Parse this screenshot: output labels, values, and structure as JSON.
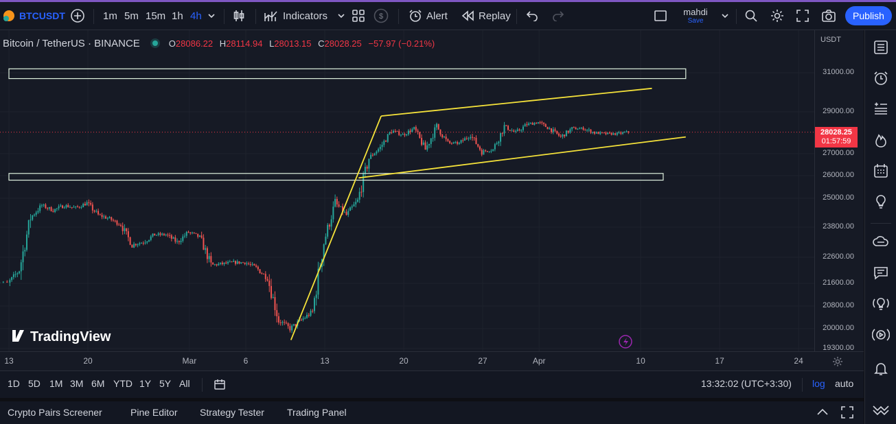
{
  "topbar": {
    "symbol": "BTCUSDT",
    "intervals": [
      "1m",
      "5m",
      "15m",
      "1h",
      "4h"
    ],
    "active_interval": "4h",
    "indicators_label": "Indicators",
    "alert_label": "Alert",
    "replay_label": "Replay",
    "user_name": "mahdi",
    "save_label": "Save",
    "publish_label": "Publish"
  },
  "legend": {
    "title": "Bitcoin / TetherUS · BINANCE",
    "open_key": "O",
    "open": "28086.22",
    "high_key": "H",
    "high": "28114.94",
    "low_key": "L",
    "low": "28013.15",
    "close_key": "C",
    "close": "28028.25",
    "change": "−57.97 (−0.21%)"
  },
  "watermark": "TradingView",
  "price_scale": {
    "currency": "USDT",
    "labels": [
      "31000.00",
      "29000.00",
      "27000.00",
      "26000.00",
      "25000.00",
      "23800.00",
      "22600.00",
      "21600.00",
      "20800.00",
      "20000.00",
      "19300.00"
    ],
    "last_price": "28028.25",
    "countdown": "01:57:59"
  },
  "time_axis": {
    "labels": [
      "13",
      "20",
      "Mar",
      "6",
      "13",
      "20",
      "27",
      "Apr",
      "10",
      "17",
      "24"
    ]
  },
  "bottom_bar": {
    "ranges": [
      "1D",
      "5D",
      "1M",
      "3M",
      "6M",
      "YTD",
      "1Y",
      "5Y",
      "All"
    ],
    "clock": "13:32:02 (UTC+3:30)",
    "log_label": "log",
    "auto_label": "auto"
  },
  "bottom_panel": {
    "tabs": [
      "Crypto Pairs Screener",
      "Pine Editor",
      "Strategy Tester",
      "Trading Panel"
    ]
  },
  "colors": {
    "up": "#26a69a",
    "down": "#ef5350",
    "trendline": "#f5e23a",
    "zone_border": "#e0f2e0",
    "last_price_bg": "#f23645",
    "accent": "#2962ff"
  },
  "drawings": {
    "upper_zone": {
      "from": "2023-02-13",
      "to": "2023-04-14",
      "bottom": 30700,
      "top": 31200
    },
    "lower_zone": {
      "from": "2023-02-13",
      "to": "2023-04-12",
      "bottom": 25800,
      "top": 26100
    },
    "channel_upper": {
      "from": "2023-03-18",
      "from_price": 28800,
      "to": "2023-04-11",
      "to_price": 30200
    },
    "channel_lower": {
      "from": "2023-03-16",
      "from_price": 25900,
      "to": "2023-04-14",
      "to_price": 27800
    },
    "rally_line": {
      "from": "2023-03-10",
      "from_price": 19600,
      "to": "2023-03-18",
      "to_price": 28800
    }
  },
  "chart_data": {
    "type": "candlestick",
    "symbol": "BTCUSDT",
    "interval": "4h",
    "anchors": [
      {
        "x": "2023-02-11",
        "y": 21700
      },
      {
        "x": "2023-02-13",
        "y": 21600
      },
      {
        "x": "2023-02-14",
        "y": 22100
      },
      {
        "x": "2023-02-15",
        "y": 24200
      },
      {
        "x": "2023-02-16",
        "y": 24700
      },
      {
        "x": "2023-02-17",
        "y": 24500
      },
      {
        "x": "2023-02-18",
        "y": 24700
      },
      {
        "x": "2023-02-19",
        "y": 24600
      },
      {
        "x": "2023-02-20",
        "y": 24800
      },
      {
        "x": "2023-02-21",
        "y": 24300
      },
      {
        "x": "2023-02-22",
        "y": 24150
      },
      {
        "x": "2023-02-23",
        "y": 23900
      },
      {
        "x": "2023-02-24",
        "y": 23100
      },
      {
        "x": "2023-02-25",
        "y": 23200
      },
      {
        "x": "2023-02-26",
        "y": 23500
      },
      {
        "x": "2023-02-27",
        "y": 23500
      },
      {
        "x": "2023-02-28",
        "y": 23200
      },
      {
        "x": "2023-03-01",
        "y": 23600
      },
      {
        "x": "2023-03-02",
        "y": 23400
      },
      {
        "x": "2023-03-03",
        "y": 22300
      },
      {
        "x": "2023-03-04",
        "y": 22350
      },
      {
        "x": "2023-03-05",
        "y": 22400
      },
      {
        "x": "2023-03-06",
        "y": 22400
      },
      {
        "x": "2023-03-07",
        "y": 22200
      },
      {
        "x": "2023-03-08",
        "y": 21800
      },
      {
        "x": "2023-03-09",
        "y": 20300
      },
      {
        "x": "2023-03-10",
        "y": 20000
      },
      {
        "x": "2023-03-11",
        "y": 20300
      },
      {
        "x": "2023-03-12",
        "y": 20600
      },
      {
        "x": "2023-03-13",
        "y": 23200
      },
      {
        "x": "2023-03-14",
        "y": 24800
      },
      {
        "x": "2023-03-15",
        "y": 24300
      },
      {
        "x": "2023-03-16",
        "y": 24900
      },
      {
        "x": "2023-03-17",
        "y": 26800
      },
      {
        "x": "2023-03-18",
        "y": 27300
      },
      {
        "x": "2023-03-19",
        "y": 28100
      },
      {
        "x": "2023-03-20",
        "y": 27900
      },
      {
        "x": "2023-03-21",
        "y": 28200
      },
      {
        "x": "2023-03-22",
        "y": 27200
      },
      {
        "x": "2023-03-23",
        "y": 28300
      },
      {
        "x": "2023-03-24",
        "y": 27500
      },
      {
        "x": "2023-03-25",
        "y": 27500
      },
      {
        "x": "2023-03-26",
        "y": 27900
      },
      {
        "x": "2023-03-27",
        "y": 27100
      },
      {
        "x": "2023-03-28",
        "y": 27200
      },
      {
        "x": "2023-03-29",
        "y": 28300
      },
      {
        "x": "2023-03-30",
        "y": 28000
      },
      {
        "x": "2023-03-31",
        "y": 28400
      },
      {
        "x": "2023-04-01",
        "y": 28500
      },
      {
        "x": "2023-04-02",
        "y": 28200
      },
      {
        "x": "2023-04-03",
        "y": 27800
      },
      {
        "x": "2023-04-04",
        "y": 28200
      },
      {
        "x": "2023-04-05",
        "y": 28200
      },
      {
        "x": "2023-04-06",
        "y": 28000
      },
      {
        "x": "2023-04-07",
        "y": 27950
      },
      {
        "x": "2023-04-08",
        "y": 27950
      },
      {
        "x": "2023-04-09",
        "y": 28028.25
      }
    ],
    "y_ticks": [
      31000,
      29000,
      27000,
      26000,
      25000,
      23800,
      22600,
      21600,
      20800,
      20000,
      19300
    ],
    "scale": "custom-compressed",
    "x_ticks": [
      "13",
      "20",
      "Mar",
      "6",
      "13",
      "20",
      "27",
      "Apr",
      "10",
      "17",
      "24"
    ],
    "last_price": 28028.25
  }
}
